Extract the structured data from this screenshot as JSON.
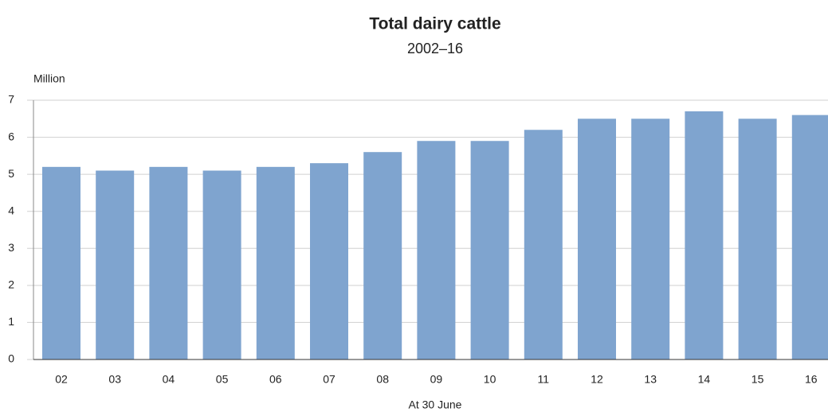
{
  "chart_data": {
    "type": "bar",
    "title": "Total dairy cattle",
    "subtitle": "2002–16",
    "y_label": "Million",
    "x_label": "At 30 June",
    "categories": [
      "02",
      "03",
      "04",
      "05",
      "06",
      "07",
      "08",
      "09",
      "10",
      "11",
      "12",
      "13",
      "14",
      "15",
      "16"
    ],
    "values": [
      5.2,
      5.1,
      5.2,
      5.1,
      5.2,
      5.3,
      5.6,
      5.9,
      5.9,
      6.2,
      6.5,
      6.5,
      6.7,
      6.5,
      6.6
    ],
    "color": "#7fa4cf",
    "ylim": [
      0,
      7
    ],
    "yticks": [
      0,
      1,
      2,
      3,
      4,
      5,
      6,
      7
    ],
    "grid": true
  }
}
